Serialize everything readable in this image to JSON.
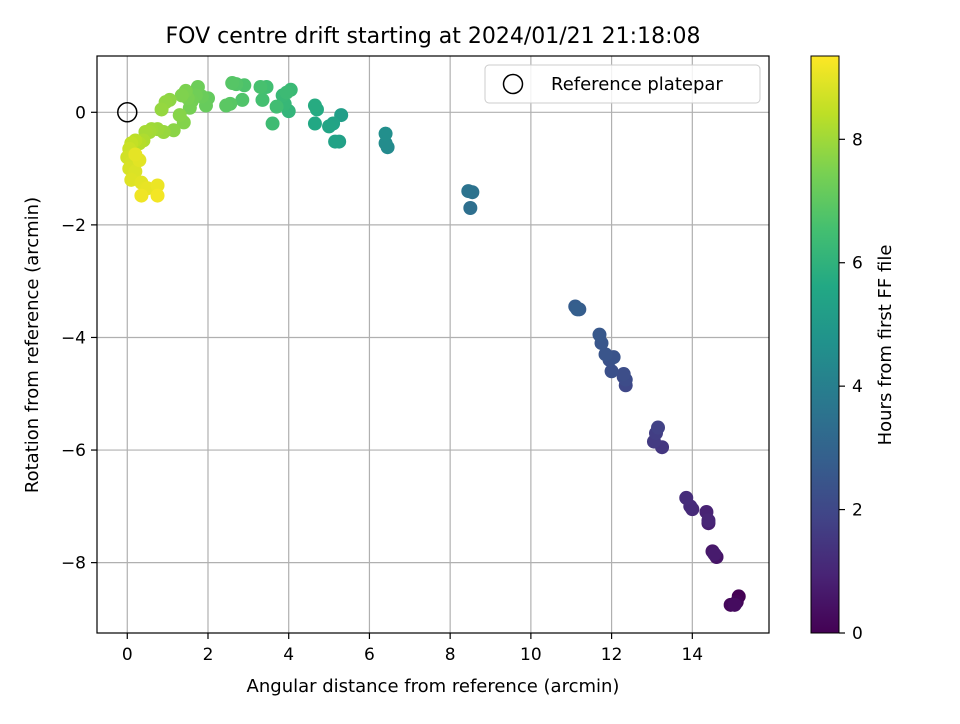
{
  "chart_data": {
    "type": "scatter",
    "title": "FOV centre drift starting at 2024/01/21 21:18:08",
    "xlabel": "Angular distance from reference (arcmin)",
    "ylabel": "Rotation from reference (arcmin)",
    "xlim": [
      -0.75,
      15.9
    ],
    "ylim": [
      -9.25,
      1.0
    ],
    "xticks": [
      "0",
      "2",
      "4",
      "6",
      "8",
      "10",
      "12",
      "14"
    ],
    "yticks": [
      "0",
      "−2",
      "−4",
      "−6",
      "−8"
    ],
    "grid": true,
    "legend_position": "top-right",
    "legend_label": "Reference platepar",
    "reference_point": {
      "x": 0,
      "y": 0
    },
    "colorbar": {
      "label": "Hours from first FF file",
      "colormap": "viridis",
      "range": [
        0,
        9.35
      ],
      "ticks": [
        "0",
        "2",
        "4",
        "6",
        "8"
      ]
    },
    "points": [
      {
        "x": 15.15,
        "y": -8.6,
        "h": 0.0
      },
      {
        "x": 15.1,
        "y": -8.7,
        "h": 0.1
      },
      {
        "x": 14.95,
        "y": -8.75,
        "h": 0.2
      },
      {
        "x": 15.05,
        "y": -8.75,
        "h": 0.3
      },
      {
        "x": 14.6,
        "y": -7.9,
        "h": 0.5
      },
      {
        "x": 14.5,
        "y": -7.8,
        "h": 0.6
      },
      {
        "x": 14.55,
        "y": -7.85,
        "h": 0.7
      },
      {
        "x": 14.4,
        "y": -7.3,
        "h": 0.8
      },
      {
        "x": 14.35,
        "y": -7.1,
        "h": 0.9
      },
      {
        "x": 14.4,
        "y": -7.25,
        "h": 1.0
      },
      {
        "x": 14.0,
        "y": -7.05,
        "h": 1.1
      },
      {
        "x": 13.95,
        "y": -7.0,
        "h": 1.15
      },
      {
        "x": 13.85,
        "y": -6.85,
        "h": 1.2
      },
      {
        "x": 13.25,
        "y": -5.95,
        "h": 1.5
      },
      {
        "x": 13.05,
        "y": -5.85,
        "h": 1.6
      },
      {
        "x": 13.1,
        "y": -5.7,
        "h": 1.7
      },
      {
        "x": 13.15,
        "y": -5.6,
        "h": 1.8
      },
      {
        "x": 12.35,
        "y": -4.85,
        "h": 2.0
      },
      {
        "x": 12.3,
        "y": -4.7,
        "h": 2.1
      },
      {
        "x": 12.35,
        "y": -4.75,
        "h": 2.15
      },
      {
        "x": 12.3,
        "y": -4.65,
        "h": 2.2
      },
      {
        "x": 12.0,
        "y": -4.6,
        "h": 2.3
      },
      {
        "x": 11.95,
        "y": -4.4,
        "h": 2.35
      },
      {
        "x": 12.05,
        "y": -4.35,
        "h": 2.4
      },
      {
        "x": 11.85,
        "y": -4.3,
        "h": 2.45
      },
      {
        "x": 11.75,
        "y": -4.1,
        "h": 2.5
      },
      {
        "x": 11.7,
        "y": -3.95,
        "h": 2.55
      },
      {
        "x": 11.2,
        "y": -3.5,
        "h": 2.7
      },
      {
        "x": 11.1,
        "y": -3.45,
        "h": 2.75
      },
      {
        "x": 11.15,
        "y": -3.5,
        "h": 2.8
      },
      {
        "x": 8.5,
        "y": -1.7,
        "h": 3.4
      },
      {
        "x": 8.55,
        "y": -1.42,
        "h": 3.5
      },
      {
        "x": 8.45,
        "y": -1.4,
        "h": 3.55
      },
      {
        "x": 6.45,
        "y": -0.62,
        "h": 4.4
      },
      {
        "x": 6.4,
        "y": -0.55,
        "h": 4.5
      },
      {
        "x": 6.4,
        "y": -0.38,
        "h": 4.6
      },
      {
        "x": 5.3,
        "y": -0.05,
        "h": 5.2
      },
      {
        "x": 5.25,
        "y": -0.52,
        "h": 5.3
      },
      {
        "x": 5.15,
        "y": -0.52,
        "h": 5.35
      },
      {
        "x": 5.1,
        "y": -0.2,
        "h": 5.4
      },
      {
        "x": 5.0,
        "y": -0.25,
        "h": 5.45
      },
      {
        "x": 4.65,
        "y": -0.2,
        "h": 5.6
      },
      {
        "x": 4.7,
        "y": 0.05,
        "h": 5.7
      },
      {
        "x": 4.65,
        "y": 0.12,
        "h": 5.75
      },
      {
        "x": 4.0,
        "y": 0.02,
        "h": 6.1
      },
      {
        "x": 3.9,
        "y": 0.15,
        "h": 6.2
      },
      {
        "x": 3.85,
        "y": 0.3,
        "h": 6.25
      },
      {
        "x": 4.05,
        "y": 0.4,
        "h": 6.3
      },
      {
        "x": 3.95,
        "y": 0.35,
        "h": 6.35
      },
      {
        "x": 3.6,
        "y": -0.2,
        "h": 6.4
      },
      {
        "x": 3.7,
        "y": 0.1,
        "h": 6.45
      },
      {
        "x": 3.45,
        "y": 0.45,
        "h": 6.5
      },
      {
        "x": 3.35,
        "y": 0.22,
        "h": 6.55
      },
      {
        "x": 3.3,
        "y": 0.45,
        "h": 6.6
      },
      {
        "x": 2.9,
        "y": 0.48,
        "h": 6.7
      },
      {
        "x": 2.85,
        "y": 0.22,
        "h": 6.75
      },
      {
        "x": 2.7,
        "y": 0.5,
        "h": 6.8
      },
      {
        "x": 2.6,
        "y": 0.52,
        "h": 6.85
      },
      {
        "x": 2.55,
        "y": 0.15,
        "h": 6.9
      },
      {
        "x": 2.45,
        "y": 0.12,
        "h": 6.95
      },
      {
        "x": 2.0,
        "y": 0.25,
        "h": 7.1
      },
      {
        "x": 1.95,
        "y": 0.12,
        "h": 7.15
      },
      {
        "x": 1.85,
        "y": 0.28,
        "h": 7.2
      },
      {
        "x": 1.75,
        "y": 0.45,
        "h": 7.25
      },
      {
        "x": 1.7,
        "y": 0.3,
        "h": 7.3
      },
      {
        "x": 1.6,
        "y": 0.2,
        "h": 7.35
      },
      {
        "x": 1.55,
        "y": 0.08,
        "h": 7.4
      },
      {
        "x": 1.5,
        "y": 0.25,
        "h": 7.45
      },
      {
        "x": 1.45,
        "y": 0.38,
        "h": 7.5
      },
      {
        "x": 1.35,
        "y": 0.3,
        "h": 7.55
      },
      {
        "x": 1.4,
        "y": -0.18,
        "h": 7.6
      },
      {
        "x": 1.3,
        "y": -0.05,
        "h": 7.65
      },
      {
        "x": 1.15,
        "y": -0.32,
        "h": 7.7
      },
      {
        "x": 1.05,
        "y": 0.22,
        "h": 7.75
      },
      {
        "x": 0.95,
        "y": 0.18,
        "h": 7.8
      },
      {
        "x": 0.85,
        "y": 0.05,
        "h": 7.85
      },
      {
        "x": 0.9,
        "y": -0.35,
        "h": 7.9
      },
      {
        "x": 0.75,
        "y": -0.3,
        "h": 7.95
      },
      {
        "x": 0.6,
        "y": -0.3,
        "h": 8.0
      },
      {
        "x": 0.55,
        "y": -0.35,
        "h": 8.05
      },
      {
        "x": 0.45,
        "y": -0.35,
        "h": 8.1
      },
      {
        "x": 0.4,
        "y": -0.5,
        "h": 8.2
      },
      {
        "x": 0.3,
        "y": -0.55,
        "h": 8.3
      },
      {
        "x": 0.2,
        "y": -0.5,
        "h": 8.4
      },
      {
        "x": 0.1,
        "y": -0.55,
        "h": 8.5
      },
      {
        "x": 0.05,
        "y": -0.65,
        "h": 8.6
      },
      {
        "x": 0.15,
        "y": -0.75,
        "h": 8.65
      },
      {
        "x": 0.0,
        "y": -0.8,
        "h": 8.7
      },
      {
        "x": 0.1,
        "y": -0.9,
        "h": 8.75
      },
      {
        "x": 0.05,
        "y": -1.0,
        "h": 8.8
      },
      {
        "x": 0.2,
        "y": -1.05,
        "h": 8.85
      },
      {
        "x": 0.1,
        "y": -1.2,
        "h": 8.9
      },
      {
        "x": 0.35,
        "y": -1.25,
        "h": 8.95
      },
      {
        "x": 0.45,
        "y": -1.35,
        "h": 9.0
      },
      {
        "x": 0.5,
        "y": -1.35,
        "h": 9.05
      },
      {
        "x": 0.75,
        "y": -1.3,
        "h": 9.1
      },
      {
        "x": 0.35,
        "y": -1.48,
        "h": 9.15
      },
      {
        "x": 0.75,
        "y": -1.48,
        "h": 9.2
      },
      {
        "x": 0.3,
        "y": -0.85,
        "h": 8.95
      },
      {
        "x": 0.2,
        "y": -0.75,
        "h": 9.0
      }
    ]
  }
}
